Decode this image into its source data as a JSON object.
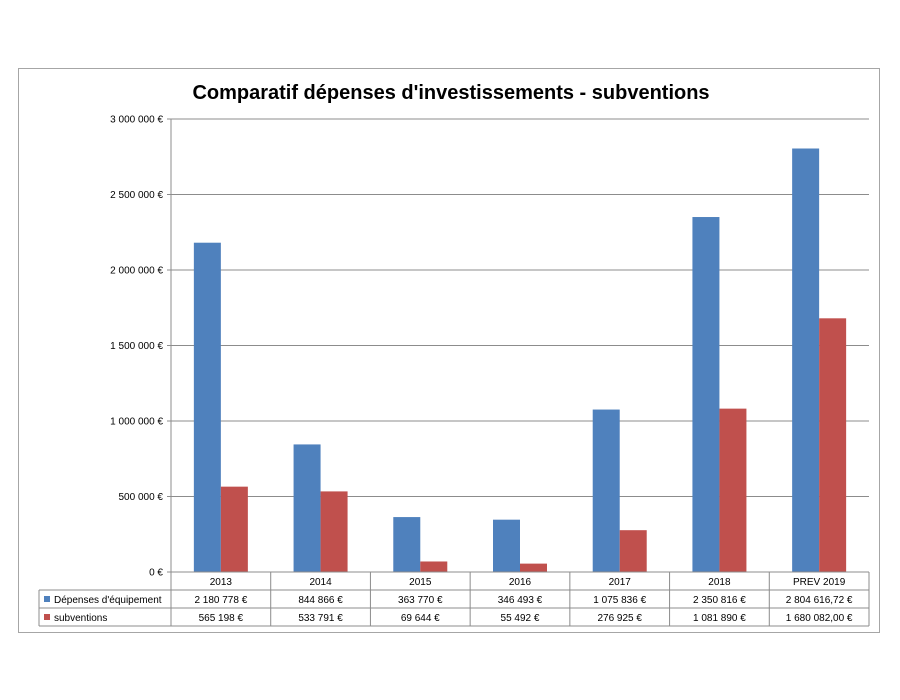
{
  "chart_data": {
    "type": "bar",
    "title": "Comparatif dépenses d'investissements - subventions",
    "categories": [
      "2013",
      "2014",
      "2015",
      "2016",
      "2017",
      "2018",
      "PREV 2019"
    ],
    "ylim": [
      0,
      3000000
    ],
    "yticks": [
      0,
      500000,
      1000000,
      1500000,
      2000000,
      2500000,
      3000000
    ],
    "ytick_labels": [
      "0 €",
      "500 000 €",
      "1 000 000 €",
      "1 500 000 €",
      "2 000 000 €",
      "2 500 000 €",
      "3 000 000 €"
    ],
    "grid": true,
    "legend": "data-table",
    "series": [
      {
        "name": "Dépenses d'équipement",
        "color": "#4f81bd",
        "values": [
          2180778,
          844866,
          363770,
          346493,
          1075836,
          2350816,
          2804616.72
        ],
        "labels": [
          "2 180 778 €",
          "844 866 €",
          "363 770 €",
          "346 493 €",
          "1 075 836 €",
          "2 350 816 €",
          "2 804 616,72 €"
        ]
      },
      {
        "name": "subventions",
        "color": "#c0504d",
        "values": [
          565198,
          533791,
          69644,
          55492,
          276925,
          1081890,
          1680082
        ],
        "labels": [
          "565 198 €",
          "533 791 €",
          "69 644 €",
          "55 492 €",
          "276 925 €",
          "1 081 890 €",
          "1 680 082,00 €"
        ]
      }
    ]
  }
}
